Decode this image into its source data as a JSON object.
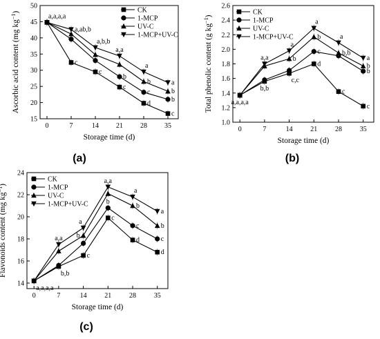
{
  "series_names": [
    "CK",
    "1-MCP",
    "UV-C",
    "1-MCP+UV-C"
  ],
  "chart_data": [
    {
      "type": "line",
      "panel_label": "(a)",
      "xlabel": "Storage time (d)",
      "ylabel": "Ascorbic acid content (mg kg",
      "ylabel_sup": "−1",
      "ylabel_close": ")",
      "x": [
        0,
        7,
        14,
        21,
        28,
        35
      ],
      "xlim": [
        -2,
        38
      ],
      "ylim": [
        15,
        50
      ],
      "yticks": [
        15,
        20,
        25,
        30,
        35,
        40,
        45,
        50
      ],
      "xticks": [
        0,
        7,
        14,
        21,
        28,
        35
      ],
      "legend_position": "top-right",
      "series": [
        {
          "name": "CK",
          "marker": "square",
          "values": [
            44.8,
            32.4,
            29.5,
            24.8,
            19.8,
            16.6
          ]
        },
        {
          "name": "1-MCP",
          "marker": "circle",
          "values": [
            44.8,
            39.6,
            33.0,
            28.0,
            23.2,
            21.0
          ]
        },
        {
          "name": "UV-C",
          "marker": "triangle-up",
          "values": [
            44.8,
            41.2,
            34.8,
            31.8,
            26.5,
            23.5
          ]
        },
        {
          "name": "1-MCP+UV-C",
          "marker": "triangle-down",
          "values": [
            44.8,
            42.6,
            37.0,
            34.4,
            29.5,
            26.2
          ]
        }
      ],
      "annotations": [
        {
          "x": 0,
          "y": 44.8,
          "text": "a,a,a,a",
          "anchor": "above-right"
        },
        {
          "x": 7,
          "y": 42.6,
          "text": "a,ab,b",
          "anchor": "right"
        },
        {
          "x": 7,
          "y": 32.4,
          "text": "c",
          "anchor": "right"
        },
        {
          "x": 14,
          "y": 37.0,
          "text": "a,b,b",
          "anchor": "above-right"
        },
        {
          "x": 14,
          "y": 29.5,
          "text": "c",
          "anchor": "right"
        },
        {
          "x": 21,
          "y": 34.4,
          "text": "a,a",
          "anchor": "above"
        },
        {
          "x": 21,
          "y": 28.0,
          "text": "b",
          "anchor": "right"
        },
        {
          "x": 21,
          "y": 24.8,
          "text": "c",
          "anchor": "right"
        },
        {
          "x": 28,
          "y": 29.5,
          "text": "a",
          "anchor": "above-right"
        },
        {
          "x": 28,
          "y": 26.5,
          "text": "b",
          "anchor": "right"
        },
        {
          "x": 28,
          "y": 23.2,
          "text": "c",
          "anchor": "right"
        },
        {
          "x": 28,
          "y": 19.8,
          "text": "d",
          "anchor": "right"
        },
        {
          "x": 35,
          "y": 26.2,
          "text": "a",
          "anchor": "right"
        },
        {
          "x": 35,
          "y": 23.5,
          "text": "b",
          "anchor": "right"
        },
        {
          "x": 35,
          "y": 21.0,
          "text": "b",
          "anchor": "right"
        },
        {
          "x": 35,
          "y": 16.6,
          "text": "c",
          "anchor": "right"
        }
      ]
    },
    {
      "type": "line",
      "panel_label": "(b)",
      "xlabel": "Storage time (d)",
      "ylabel": "Total phenolic content (g kg",
      "ylabel_sup": "−1",
      "ylabel_close": ")",
      "x": [
        0,
        7,
        14,
        21,
        28,
        35
      ],
      "xlim": [
        -2,
        38
      ],
      "ylim": [
        1.0,
        2.6
      ],
      "yticks": [
        1.0,
        1.2,
        1.4,
        1.6,
        1.8,
        2.0,
        2.2,
        2.4,
        2.6
      ],
      "xticks": [
        0,
        7,
        14,
        21,
        28,
        35
      ],
      "legend_position": "top-left",
      "series": [
        {
          "name": "CK",
          "marker": "square",
          "values": [
            1.37,
            1.56,
            1.67,
            1.8,
            1.42,
            1.22
          ]
        },
        {
          "name": "1-MCP",
          "marker": "circle",
          "values": [
            1.37,
            1.58,
            1.71,
            1.97,
            1.91,
            1.7
          ]
        },
        {
          "name": "UV-C",
          "marker": "triangle-up",
          "values": [
            1.37,
            1.77,
            1.87,
            2.17,
            1.95,
            1.77
          ]
        },
        {
          "name": "1-MCP+UV-C",
          "marker": "triangle-down",
          "values": [
            1.37,
            1.8,
            1.98,
            2.29,
            2.09,
            1.88
          ]
        }
      ],
      "annotations": [
        {
          "x": 0,
          "y": 1.37,
          "text": "a,a,a,a",
          "anchor": "below"
        },
        {
          "x": 7,
          "y": 1.8,
          "text": "a,a",
          "anchor": "above"
        },
        {
          "x": 7,
          "y": 1.56,
          "text": "b,b",
          "anchor": "below"
        },
        {
          "x": 14,
          "y": 1.98,
          "text": "a",
          "anchor": "above-right"
        },
        {
          "x": 14,
          "y": 1.87,
          "text": "b",
          "anchor": "right"
        },
        {
          "x": 14,
          "y": 1.67,
          "text": "c,c",
          "anchor": "below-right"
        },
        {
          "x": 21,
          "y": 2.29,
          "text": "a",
          "anchor": "above-right"
        },
        {
          "x": 21,
          "y": 2.17,
          "text": "b",
          "anchor": "right"
        },
        {
          "x": 21,
          "y": 1.97,
          "text": "c",
          "anchor": "right"
        },
        {
          "x": 21,
          "y": 1.8,
          "text": "d",
          "anchor": "right"
        },
        {
          "x": 28,
          "y": 2.09,
          "text": "a",
          "anchor": "above-right"
        },
        {
          "x": 28,
          "y": 1.95,
          "text": "b,b",
          "anchor": "right"
        },
        {
          "x": 28,
          "y": 1.42,
          "text": "c",
          "anchor": "right"
        },
        {
          "x": 35,
          "y": 1.88,
          "text": "a",
          "anchor": "right"
        },
        {
          "x": 35,
          "y": 1.77,
          "text": "b",
          "anchor": "right"
        },
        {
          "x": 35,
          "y": 1.7,
          "text": "b",
          "anchor": "right"
        },
        {
          "x": 35,
          "y": 1.22,
          "text": "c",
          "anchor": "right"
        }
      ]
    },
    {
      "type": "line",
      "panel_label": "(c)",
      "xlabel": "Storage time (d)",
      "ylabel": "Flavonoids content (mg kg",
      "ylabel_sup": "−1",
      "ylabel_close": ")",
      "x": [
        0,
        7,
        14,
        21,
        28,
        35
      ],
      "xlim": [
        -2,
        38
      ],
      "ylim": [
        13.5,
        24
      ],
      "yticks": [
        14,
        16,
        18,
        20,
        22,
        24
      ],
      "xticks": [
        0,
        7,
        14,
        21,
        28,
        35
      ],
      "legend_position": "top-left",
      "series": [
        {
          "name": "CK",
          "marker": "square",
          "values": [
            14.2,
            15.5,
            16.5,
            19.9,
            17.9,
            16.8
          ]
        },
        {
          "name": "1-MCP",
          "marker": "circle",
          "values": [
            14.2,
            15.6,
            17.6,
            20.8,
            19.2,
            18.0
          ]
        },
        {
          "name": "UV-C",
          "marker": "triangle-up",
          "values": [
            14.2,
            16.9,
            18.3,
            22.1,
            21.0,
            19.2
          ]
        },
        {
          "name": "1-MCP+UV-C",
          "marker": "triangle-down",
          "values": [
            14.2,
            17.5,
            19.0,
            22.7,
            21.8,
            20.5
          ]
        }
      ],
      "annotations": [
        {
          "x": 0,
          "y": 14.2,
          "text": "a,a,a,a",
          "anchor": "below-right"
        },
        {
          "x": 7,
          "y": 17.5,
          "text": "a,a",
          "anchor": "above"
        },
        {
          "x": 7,
          "y": 15.5,
          "text": "b,b",
          "anchor": "below-right"
        },
        {
          "x": 14,
          "y": 19.0,
          "text": "a",
          "anchor": "above-left"
        },
        {
          "x": 14,
          "y": 18.3,
          "text": "b",
          "anchor": "left"
        },
        {
          "x": 14,
          "y": 16.5,
          "text": "c",
          "anchor": "right"
        },
        {
          "x": 21,
          "y": 22.7,
          "text": "a,a",
          "anchor": "above"
        },
        {
          "x": 21,
          "y": 20.8,
          "text": "b",
          "anchor": "above"
        },
        {
          "x": 21,
          "y": 19.9,
          "text": "c",
          "anchor": "right"
        },
        {
          "x": 28,
          "y": 21.8,
          "text": "a",
          "anchor": "above-right"
        },
        {
          "x": 28,
          "y": 21.0,
          "text": "b",
          "anchor": "right"
        },
        {
          "x": 28,
          "y": 19.2,
          "text": "c",
          "anchor": "right"
        },
        {
          "x": 28,
          "y": 17.9,
          "text": "d",
          "anchor": "right"
        },
        {
          "x": 35,
          "y": 20.5,
          "text": "a",
          "anchor": "right"
        },
        {
          "x": 35,
          "y": 19.2,
          "text": "b",
          "anchor": "right"
        },
        {
          "x": 35,
          "y": 18.0,
          "text": "c",
          "anchor": "right"
        },
        {
          "x": 35,
          "y": 16.8,
          "text": "d",
          "anchor": "right"
        }
      ]
    }
  ]
}
